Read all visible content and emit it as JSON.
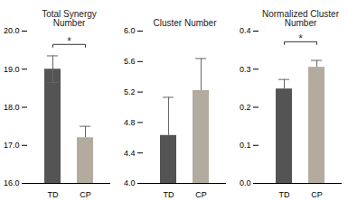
{
  "chart_data": [
    {
      "type": "bar",
      "title": "Total Synergy\nNumber",
      "categories": [
        "TD",
        "CP"
      ],
      "values": [
        19.0,
        17.2
      ],
      "errors_lo": [
        0.35,
        0.0
      ],
      "errors_hi": [
        0.35,
        0.3
      ],
      "colors": [
        "#545454",
        "#b3ab9e"
      ],
      "ylim": [
        16.0,
        20.0
      ],
      "yticks": [
        {
          "value": 16.0,
          "label": "16.0"
        },
        {
          "value": 17.0,
          "label": "17.0"
        },
        {
          "value": 18.0,
          "label": "18.0"
        },
        {
          "value": 19.0,
          "label": "19.0"
        },
        {
          "value": 20.0,
          "label": "20.0"
        }
      ],
      "grid": false,
      "annotations": [
        {
          "text": "*",
          "x1": "TD",
          "x2": "CP",
          "y": 19.65
        }
      ]
    },
    {
      "type": "bar",
      "title": "Cluster Number",
      "categories": [
        "TD",
        "CP"
      ],
      "values": [
        4.63,
        5.22
      ],
      "errors_lo": [
        0.0,
        0.0
      ],
      "errors_hi": [
        0.5,
        0.42
      ],
      "colors": [
        "#545454",
        "#b3ab9e"
      ],
      "ylim": [
        4.0,
        6.0
      ],
      "yticks": [
        {
          "value": 4.0,
          "label": "4.0"
        },
        {
          "value": 4.4,
          "label": "4.4"
        },
        {
          "value": 4.8,
          "label": "4.8"
        },
        {
          "value": 5.2,
          "label": "5.2"
        },
        {
          "value": 5.6,
          "label": "5.6"
        },
        {
          "value": 6.0,
          "label": "6.0"
        }
      ],
      "grid": false
    },
    {
      "type": "bar",
      "title": "Normalized Cluster\nNumber",
      "categories": [
        "TD",
        "CP"
      ],
      "values": [
        0.248,
        0.305
      ],
      "errors_lo": [
        0.0,
        0.0
      ],
      "errors_hi": [
        0.025,
        0.018
      ],
      "colors": [
        "#545454",
        "#b3ab9e"
      ],
      "ylim": [
        0.0,
        0.4
      ],
      "yticks": [
        {
          "value": 0.0,
          "label": "0.0"
        },
        {
          "value": 0.1,
          "label": "0.1"
        },
        {
          "value": 0.2,
          "label": "0.2"
        },
        {
          "value": 0.3,
          "label": "0.3"
        },
        {
          "value": 0.4,
          "label": "0.4"
        }
      ],
      "grid": false,
      "annotations": [
        {
          "text": "*",
          "x1": "TD",
          "x2": "CP",
          "y": 0.372
        }
      ]
    }
  ]
}
